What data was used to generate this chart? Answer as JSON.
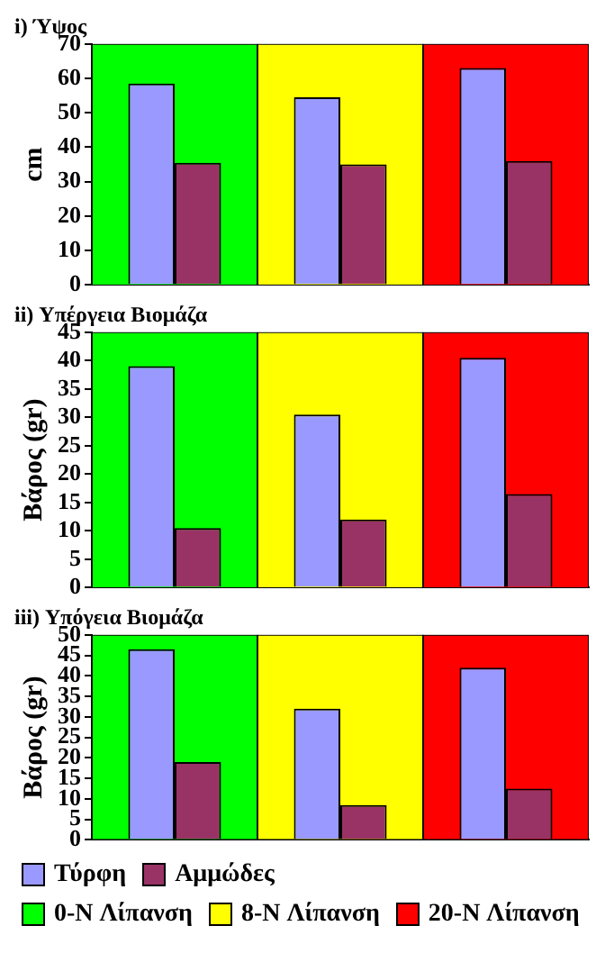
{
  "chart_data": [
    {
      "type": "bar",
      "title": "i) Ύψος",
      "ylabel": "cm",
      "categories": [
        null,
        null,
        null
      ],
      "series": [
        {
          "colors": [
            "#00ff00",
            "#ffff00",
            "#ff0000"
          ],
          "values": [
            70,
            70,
            70
          ]
        },
        {
          "color": "#9999ff",
          "values": [
            58.5,
            54.5,
            63
          ]
        },
        {
          "color": "#993366",
          "values": [
            35.5,
            35,
            36
          ]
        }
      ],
      "ylim": [
        0,
        70
      ],
      "yticks": [
        0,
        10,
        20,
        30,
        40,
        50,
        60,
        70
      ],
      "tick_labels": "y"
    },
    {
      "type": "bar",
      "title": "ii) Υπέργεια Βιομάζα",
      "ylabel": "Βάρος (gr)",
      "categories": [
        null,
        null,
        null
      ],
      "series": [
        {
          "colors": [
            "#00ff00",
            "#ffff00",
            "#ff0000"
          ],
          "values": [
            45,
            45,
            45
          ]
        },
        {
          "color": "#9999ff",
          "values": [
            39,
            30.5,
            40.5
          ]
        },
        {
          "color": "#993366",
          "values": [
            10.5,
            12,
            16.5
          ]
        }
      ],
      "ylim": [
        0,
        45
      ],
      "yticks": [
        0,
        5,
        10,
        15,
        20,
        25,
        30,
        35,
        40,
        45
      ],
      "tick_labels": "y"
    },
    {
      "type": "bar",
      "title": "iii) Υπόγεια Βιομάζα",
      "ylabel": "Βάρος (gr)",
      "categories": [
        "0-N Λίπανση",
        "8-N Λίπανση",
        "20-N Λίπανση"
      ],
      "series": [
        {
          "colors": [
            "#00ff00",
            "#ffff00",
            "#ff0000"
          ],
          "values": [
            50,
            50,
            50
          ]
        },
        {
          "name": "Τύρφη",
          "color": "#9999ff",
          "values": [
            46.5,
            32,
            42
          ]
        },
        {
          "name": "Αμμώδες",
          "color": "#993366",
          "values": [
            19,
            8.5,
            12.5
          ]
        }
      ],
      "ylim": [
        0,
        50
      ],
      "yticks": [
        0,
        5,
        10,
        15,
        20,
        25,
        30,
        35,
        40,
        45,
        50
      ],
      "legend": "bottom",
      "tick_labels": "y"
    }
  ]
}
